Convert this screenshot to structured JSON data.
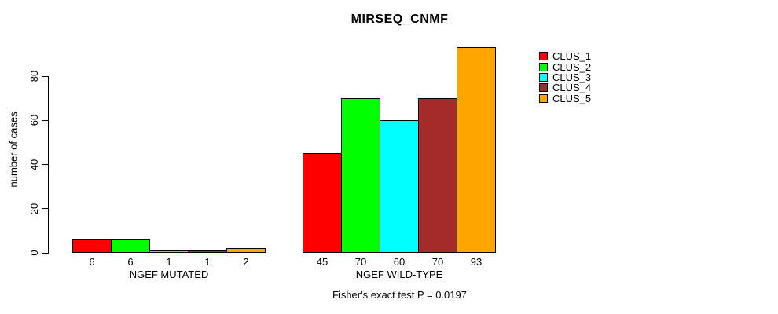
{
  "chart_data": {
    "type": "bar",
    "title": "MIRSEQ_CNMF",
    "ylabel": "number of cases",
    "xlabel": "",
    "caption": "Fisher's exact test P = 0.0197",
    "yticks": [
      0,
      20,
      40,
      60,
      80
    ],
    "ylim": [
      0,
      93
    ],
    "grid": false,
    "legend_position": "top-right",
    "groups": [
      {
        "label": "NGEF MUTATED",
        "values": [
          6,
          6,
          1,
          1,
          2
        ]
      },
      {
        "label": "NGEF WILD-TYPE",
        "values": [
          45,
          70,
          60,
          70,
          93
        ]
      }
    ],
    "series": [
      {
        "name": "CLUS_1",
        "color": "#FF0000",
        "values": [
          6,
          45
        ]
      },
      {
        "name": "CLUS_2",
        "color": "#00FF00",
        "values": [
          6,
          70
        ]
      },
      {
        "name": "CLUS_3",
        "color": "#00FFFF",
        "values": [
          1,
          60
        ]
      },
      {
        "name": "CLUS_4",
        "color": "#A52A2A",
        "values": [
          1,
          70
        ]
      },
      {
        "name": "CLUS_5",
        "color": "#FFA500",
        "values": [
          2,
          93
        ]
      }
    ],
    "bar_border_color": "#000000",
    "text_color": "#000000",
    "background_color": "#FFFFFF"
  }
}
